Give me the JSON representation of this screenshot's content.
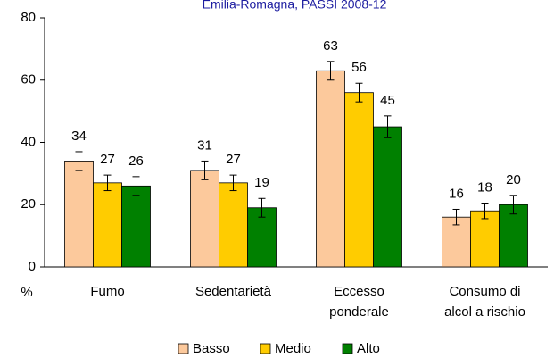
{
  "chart_data": {
    "type": "bar",
    "title": "Emilia-Romagna, PASSI 2008-12",
    "y_axis_label": "%",
    "categories": [
      [
        "Fumo"
      ],
      [
        "Sedentarietà"
      ],
      [
        "Eccesso",
        "ponderale"
      ],
      [
        "Consumo di",
        "alcol a rischio"
      ]
    ],
    "series": [
      {
        "name": "Basso",
        "color": "#fcc99c",
        "values": [
          34,
          31,
          63,
          16
        ],
        "errors": [
          3,
          3,
          3,
          2.5
        ]
      },
      {
        "name": "Medio",
        "color": "#ffcc00",
        "values": [
          27,
          27,
          56,
          18
        ],
        "errors": [
          2.5,
          2.5,
          3,
          2.5
        ]
      },
      {
        "name": "Alto",
        "color": "#008000",
        "values": [
          26,
          19,
          45,
          20
        ],
        "errors": [
          3,
          3,
          3.5,
          3
        ]
      }
    ],
    "ylim": [
      0,
      80
    ],
    "yticks": [
      0,
      20,
      40,
      60,
      80
    ],
    "legend": "bottom"
  }
}
